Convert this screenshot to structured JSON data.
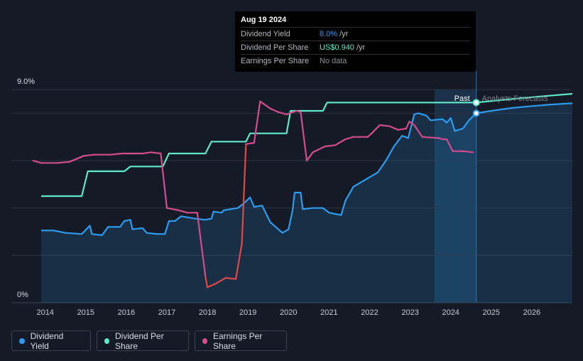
{
  "chart_data": {
    "type": "line",
    "y_axis": {
      "top_label": "9.0%",
      "bottom_label": "0%",
      "min": 0,
      "max": 9.0,
      "unit": "%"
    },
    "x_axis": {
      "ticks": [
        "2014",
        "2015",
        "2016",
        "2017",
        "2018",
        "2019",
        "2020",
        "2021",
        "2022",
        "2023",
        "2024",
        "2025",
        "2026"
      ],
      "range": [
        2013.7,
        2027.0
      ]
    },
    "regions": {
      "past_label": "Past",
      "forecast_label": "Analysts Forecasts",
      "forecast_start": 2024.63,
      "shaded_past_start": 2023.6
    },
    "grid": true,
    "series": [
      {
        "name": "Dividend Yield",
        "color": "#2d9cf0",
        "fill": true,
        "unit": "%",
        "points": [
          [
            2013.9,
            3.05
          ],
          [
            2014.2,
            3.05
          ],
          [
            2014.5,
            2.95
          ],
          [
            2014.9,
            2.9
          ],
          [
            2015.1,
            3.25
          ],
          [
            2015.15,
            2.9
          ],
          [
            2015.4,
            2.85
          ],
          [
            2015.55,
            3.2
          ],
          [
            2015.85,
            3.2
          ],
          [
            2015.95,
            3.45
          ],
          [
            2016.1,
            3.5
          ],
          [
            2016.15,
            3.1
          ],
          [
            2016.4,
            3.15
          ],
          [
            2016.5,
            2.95
          ],
          [
            2016.75,
            2.9
          ],
          [
            2016.95,
            2.9
          ],
          [
            2017.05,
            3.45
          ],
          [
            2017.2,
            3.45
          ],
          [
            2017.35,
            3.65
          ],
          [
            2017.7,
            3.55
          ],
          [
            2017.95,
            3.5
          ],
          [
            2018.1,
            3.55
          ],
          [
            2018.15,
            3.85
          ],
          [
            2018.35,
            3.8
          ],
          [
            2018.4,
            3.9
          ],
          [
            2018.75,
            4.0
          ],
          [
            2018.9,
            4.2
          ],
          [
            2019.05,
            4.45
          ],
          [
            2019.15,
            4.05
          ],
          [
            2019.35,
            4.1
          ],
          [
            2019.55,
            3.4
          ],
          [
            2019.85,
            2.95
          ],
          [
            2020.0,
            3.1
          ],
          [
            2020.1,
            3.9
          ],
          [
            2020.15,
            4.65
          ],
          [
            2020.3,
            4.65
          ],
          [
            2020.35,
            3.95
          ],
          [
            2020.6,
            4.0
          ],
          [
            2020.85,
            4.0
          ],
          [
            2021.0,
            3.8
          ],
          [
            2021.3,
            3.7
          ],
          [
            2021.4,
            4.3
          ],
          [
            2021.6,
            4.9
          ],
          [
            2021.9,
            5.2
          ],
          [
            2022.2,
            5.5
          ],
          [
            2022.4,
            6.0
          ],
          [
            2022.6,
            6.6
          ],
          [
            2022.8,
            7.05
          ],
          [
            2022.95,
            6.95
          ],
          [
            2023.1,
            7.95
          ],
          [
            2023.2,
            8.0
          ],
          [
            2023.4,
            7.9
          ],
          [
            2023.5,
            7.7
          ],
          [
            2023.8,
            7.75
          ],
          [
            2023.9,
            7.6
          ],
          [
            2024.0,
            7.8
          ],
          [
            2024.1,
            7.25
          ],
          [
            2024.3,
            7.35
          ],
          [
            2024.45,
            7.7
          ],
          [
            2024.63,
            8.0
          ]
        ]
      },
      {
        "name": "Dividend Yield forecast",
        "color": "#2d9cf0",
        "fill": true,
        "points": [
          [
            2024.63,
            8.0
          ],
          [
            2025.0,
            8.1
          ],
          [
            2025.5,
            8.22
          ],
          [
            2026.0,
            8.3
          ],
          [
            2026.5,
            8.37
          ],
          [
            2027.0,
            8.42
          ]
        ]
      },
      {
        "name": "Dividend Per Share",
        "color": "#5fe8c9",
        "points": [
          [
            2013.9,
            4.5
          ],
          [
            2014.9,
            4.5
          ],
          [
            2015.05,
            5.55
          ],
          [
            2015.95,
            5.55
          ],
          [
            2016.1,
            5.75
          ],
          [
            2016.9,
            5.75
          ],
          [
            2017.05,
            6.3
          ],
          [
            2017.95,
            6.3
          ],
          [
            2018.1,
            6.8
          ],
          [
            2018.95,
            6.8
          ],
          [
            2019.05,
            7.15
          ],
          [
            2019.95,
            7.15
          ],
          [
            2020.05,
            8.1
          ],
          [
            2020.85,
            8.1
          ],
          [
            2020.95,
            8.45
          ],
          [
            2024.63,
            8.45
          ]
        ]
      },
      {
        "name": "Dividend Per Share forecast",
        "color": "#5fe8c9",
        "points": [
          [
            2024.63,
            8.45
          ],
          [
            2025.5,
            8.6
          ],
          [
            2026.3,
            8.72
          ],
          [
            2027.0,
            8.82
          ]
        ]
      },
      {
        "name": "Earnings Per Share",
        "color": "#d24c8e",
        "points": [
          [
            2013.7,
            6.0
          ],
          [
            2013.9,
            5.9
          ],
          [
            2014.3,
            5.9
          ],
          [
            2014.6,
            5.95
          ],
          [
            2014.95,
            6.2
          ],
          [
            2015.2,
            6.25
          ],
          [
            2015.6,
            6.25
          ],
          [
            2015.9,
            6.3
          ],
          [
            2016.4,
            6.3
          ],
          [
            2016.6,
            6.35
          ],
          [
            2016.85,
            6.3
          ],
          [
            2017.0,
            4.0
          ],
          [
            2017.3,
            3.9
          ],
          [
            2017.5,
            3.8
          ],
          [
            2017.75,
            3.8
          ],
          [
            2017.95,
            1.1
          ],
          [
            2018.0,
            0.65
          ],
          [
            2018.2,
            0.8
          ],
          [
            2018.45,
            1.05
          ],
          [
            2018.7,
            1.0
          ],
          [
            2018.85,
            2.5
          ],
          [
            2018.95,
            6.7
          ],
          [
            2019.15,
            6.75
          ],
          [
            2019.3,
            8.5
          ],
          [
            2019.55,
            8.2
          ],
          [
            2019.75,
            8.05
          ],
          [
            2019.95,
            7.95
          ],
          [
            2020.2,
            8.1
          ],
          [
            2020.3,
            8.05
          ],
          [
            2020.45,
            6.0
          ],
          [
            2020.6,
            6.35
          ],
          [
            2020.9,
            6.6
          ],
          [
            2021.15,
            6.65
          ],
          [
            2021.4,
            6.9
          ],
          [
            2021.6,
            7.0
          ],
          [
            2021.95,
            7.0
          ],
          [
            2022.05,
            7.15
          ],
          [
            2022.25,
            7.5
          ],
          [
            2022.5,
            7.45
          ],
          [
            2022.7,
            7.3
          ],
          [
            2022.9,
            7.35
          ],
          [
            2022.98,
            7.65
          ],
          [
            2023.1,
            7.5
          ],
          [
            2023.3,
            7.0
          ],
          [
            2023.7,
            6.95
          ],
          [
            2023.8,
            6.9
          ],
          [
            2023.9,
            6.9
          ],
          [
            2024.05,
            6.4
          ],
          [
            2024.3,
            6.4
          ],
          [
            2024.55,
            6.35
          ]
        ]
      }
    ],
    "markers": [
      {
        "series": "Dividend Per Share",
        "x": 2024.63,
        "value": 8.45
      },
      {
        "series": "Dividend Yield",
        "x": 2024.63,
        "value": 8.0
      }
    ]
  },
  "tooltip": {
    "date": "Aug 19 2024",
    "rows": [
      {
        "label": "Dividend Yield",
        "value": "8.0%",
        "suffix": "/yr",
        "color": "#2d9cf0"
      },
      {
        "label": "Dividend Per Share",
        "value": "US$0.940",
        "suffix": "/yr",
        "color": "#5fe8c9"
      },
      {
        "label": "Earnings Per Share",
        "value": "No data",
        "suffix": "",
        "color": "#8a9099"
      }
    ]
  },
  "legend": [
    {
      "label": "Dividend Yield",
      "color": "#2d9cf0"
    },
    {
      "label": "Dividend Per Share",
      "color": "#5fe8c9"
    },
    {
      "label": "Earnings Per Share",
      "color": "#d24c8e"
    }
  ]
}
